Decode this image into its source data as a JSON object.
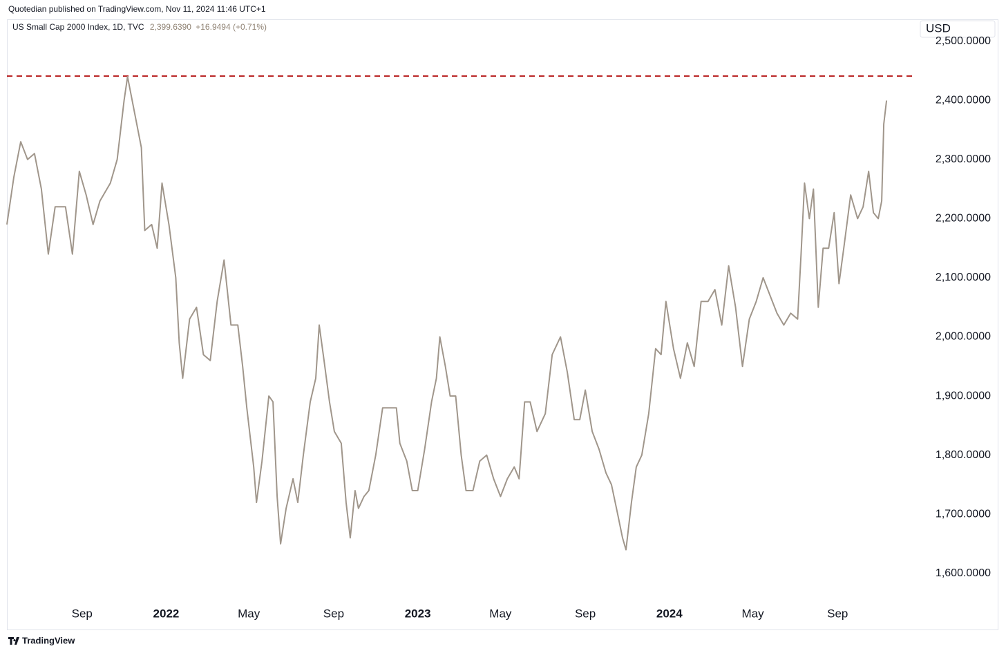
{
  "header": {
    "text": "Quotedian published on TradingView.com, Nov 11, 2024 11:46 UTC+1"
  },
  "chart_data": {
    "type": "line",
    "legend": {
      "last": "2,399.6390",
      "change": "+16.9494 (+0.71%)"
    },
    "currency": "USD",
    "series": [
      {
        "name": "US Small Cap 2000 Index, 1D, TVC",
        "color": "#a0968b",
        "x": [
          "2021-05-15",
          "2021-05-25",
          "2021-06-04",
          "2021-06-14",
          "2021-06-24",
          "2021-07-04",
          "2021-07-14",
          "2021-07-24",
          "2021-08-08",
          "2021-08-18",
          "2021-08-28",
          "2021-09-07",
          "2021-09-17",
          "2021-09-27",
          "2021-10-12",
          "2021-10-22",
          "2021-11-01",
          "2021-11-06",
          "2021-11-16",
          "2021-11-26",
          "2021-12-01",
          "2021-12-11",
          "2021-12-19",
          "2021-12-26",
          "2022-01-05",
          "2022-01-15",
          "2022-01-20",
          "2022-01-25",
          "2022-02-04",
          "2022-02-14",
          "2022-02-24",
          "2022-03-06",
          "2022-03-16",
          "2022-03-26",
          "2022-04-05",
          "2022-04-15",
          "2022-04-22",
          "2022-04-28",
          "2022-05-08",
          "2022-05-12",
          "2022-05-20",
          "2022-05-30",
          "2022-06-05",
          "2022-06-11",
          "2022-06-16",
          "2022-06-24",
          "2022-07-04",
          "2022-07-11",
          "2022-07-19",
          "2022-07-29",
          "2022-08-06",
          "2022-08-11",
          "2022-08-18",
          "2022-08-26",
          "2022-09-02",
          "2022-09-12",
          "2022-09-19",
          "2022-09-25",
          "2022-10-02",
          "2022-10-07",
          "2022-10-15",
          "2022-10-22",
          "2022-11-01",
          "2022-11-11",
          "2022-11-21",
          "2022-12-01",
          "2022-12-06",
          "2022-12-16",
          "2022-12-24",
          "2023-01-01",
          "2023-01-11",
          "2023-01-21",
          "2023-01-28",
          "2023-02-02",
          "2023-02-10",
          "2023-02-17",
          "2023-02-25",
          "2023-03-05",
          "2023-03-12",
          "2023-03-22",
          "2023-04-01",
          "2023-04-11",
          "2023-04-21",
          "2023-05-01",
          "2023-05-11",
          "2023-05-21",
          "2023-05-28",
          "2023-06-05",
          "2023-06-13",
          "2023-06-23",
          "2023-07-05",
          "2023-07-15",
          "2023-07-27",
          "2023-08-06",
          "2023-08-16",
          "2023-08-24",
          "2023-09-01",
          "2023-09-11",
          "2023-09-21",
          "2023-10-01",
          "2023-10-09",
          "2023-10-18",
          "2023-10-25",
          "2023-10-30",
          "2023-11-07",
          "2023-11-14",
          "2023-11-22",
          "2023-12-02",
          "2023-12-12",
          "2023-12-20",
          "2023-12-27",
          "2024-01-07",
          "2024-01-17",
          "2024-01-27",
          "2024-02-06",
          "2024-02-16",
          "2024-02-26",
          "2024-03-07",
          "2024-03-17",
          "2024-03-27",
          "2024-04-06",
          "2024-04-16",
          "2024-04-26",
          "2024-05-06",
          "2024-05-16",
          "2024-05-26",
          "2024-06-05",
          "2024-06-15",
          "2024-06-25",
          "2024-07-05",
          "2024-07-10",
          "2024-07-15",
          "2024-07-22",
          "2024-07-28",
          "2024-08-04",
          "2024-08-11",
          "2024-08-19",
          "2024-08-27",
          "2024-09-03",
          "2024-09-10",
          "2024-09-20",
          "2024-09-30",
          "2024-10-08",
          "2024-10-16",
          "2024-10-23",
          "2024-10-30",
          "2024-11-04",
          "2024-11-07",
          "2024-11-11"
        ],
        "values": [
          2190,
          2270,
          2330,
          2300,
          2310,
          2250,
          2140,
          2220,
          2220,
          2140,
          2280,
          2240,
          2190,
          2230,
          2260,
          2300,
          2400,
          2440,
          2380,
          2320,
          2180,
          2190,
          2150,
          2260,
          2190,
          2100,
          1990,
          1930,
          2030,
          2050,
          1970,
          1960,
          2060,
          2130,
          2020,
          2020,
          1950,
          1880,
          1780,
          1720,
          1790,
          1900,
          1890,
          1730,
          1650,
          1710,
          1760,
          1720,
          1800,
          1890,
          1930,
          2020,
          1960,
          1890,
          1840,
          1820,
          1720,
          1660,
          1740,
          1710,
          1730,
          1740,
          1800,
          1880,
          1880,
          1880,
          1820,
          1790,
          1740,
          1740,
          1810,
          1890,
          1930,
          2000,
          1950,
          1900,
          1900,
          1800,
          1740,
          1740,
          1790,
          1800,
          1760,
          1730,
          1760,
          1780,
          1760,
          1890,
          1890,
          1840,
          1870,
          1970,
          2000,
          1940,
          1860,
          1860,
          1910,
          1840,
          1810,
          1770,
          1750,
          1700,
          1660,
          1640,
          1720,
          1780,
          1800,
          1870,
          1980,
          1970,
          2060,
          1980,
          1930,
          1990,
          1950,
          2060,
          2060,
          2080,
          2020,
          2120,
          2050,
          1950,
          2030,
          2060,
          2100,
          2070,
          2040,
          2020,
          2040,
          2030,
          2140,
          2260,
          2200,
          2250,
          2050,
          2150,
          2150,
          2210,
          2090,
          2150,
          2240,
          2200,
          2220,
          2280,
          2210,
          2200,
          2230,
          2360,
          2399.64
        ]
      }
    ],
    "hline": {
      "value": 2441,
      "color": "#b71c1c"
    },
    "xlim": [
      "2021-05-15",
      "2024-12-23"
    ],
    "xticks": [
      {
        "value": "2021-09-01",
        "label": "Sep"
      },
      {
        "value": "2022-01-01",
        "label": "2022"
      },
      {
        "value": "2022-05-01",
        "label": "May"
      },
      {
        "value": "2022-09-01",
        "label": "Sep"
      },
      {
        "value": "2023-01-01",
        "label": "2023"
      },
      {
        "value": "2023-05-01",
        "label": "May"
      },
      {
        "value": "2023-09-01",
        "label": "Sep"
      },
      {
        "value": "2024-01-01",
        "label": "2024"
      },
      {
        "value": "2024-05-01",
        "label": "May"
      },
      {
        "value": "2024-09-01",
        "label": "Sep"
      }
    ],
    "ylim": [
      1553,
      2537
    ],
    "yticks": [
      {
        "value": 1600,
        "label": "1,600.0000"
      },
      {
        "value": 1700,
        "label": "1,700.0000"
      },
      {
        "value": 1800,
        "label": "1,800.0000"
      },
      {
        "value": 1900,
        "label": "1,900.0000"
      },
      {
        "value": 2000,
        "label": "2,000.0000"
      },
      {
        "value": 2100,
        "label": "2,100.0000"
      },
      {
        "value": 2200,
        "label": "2,200.0000"
      },
      {
        "value": 2300,
        "label": "2,300.0000"
      },
      {
        "value": 2400,
        "label": "2,400.0000"
      },
      {
        "value": 2500,
        "label": "2,500.0000"
      }
    ],
    "grid": false
  },
  "footer": {
    "brand": "TradingView"
  }
}
